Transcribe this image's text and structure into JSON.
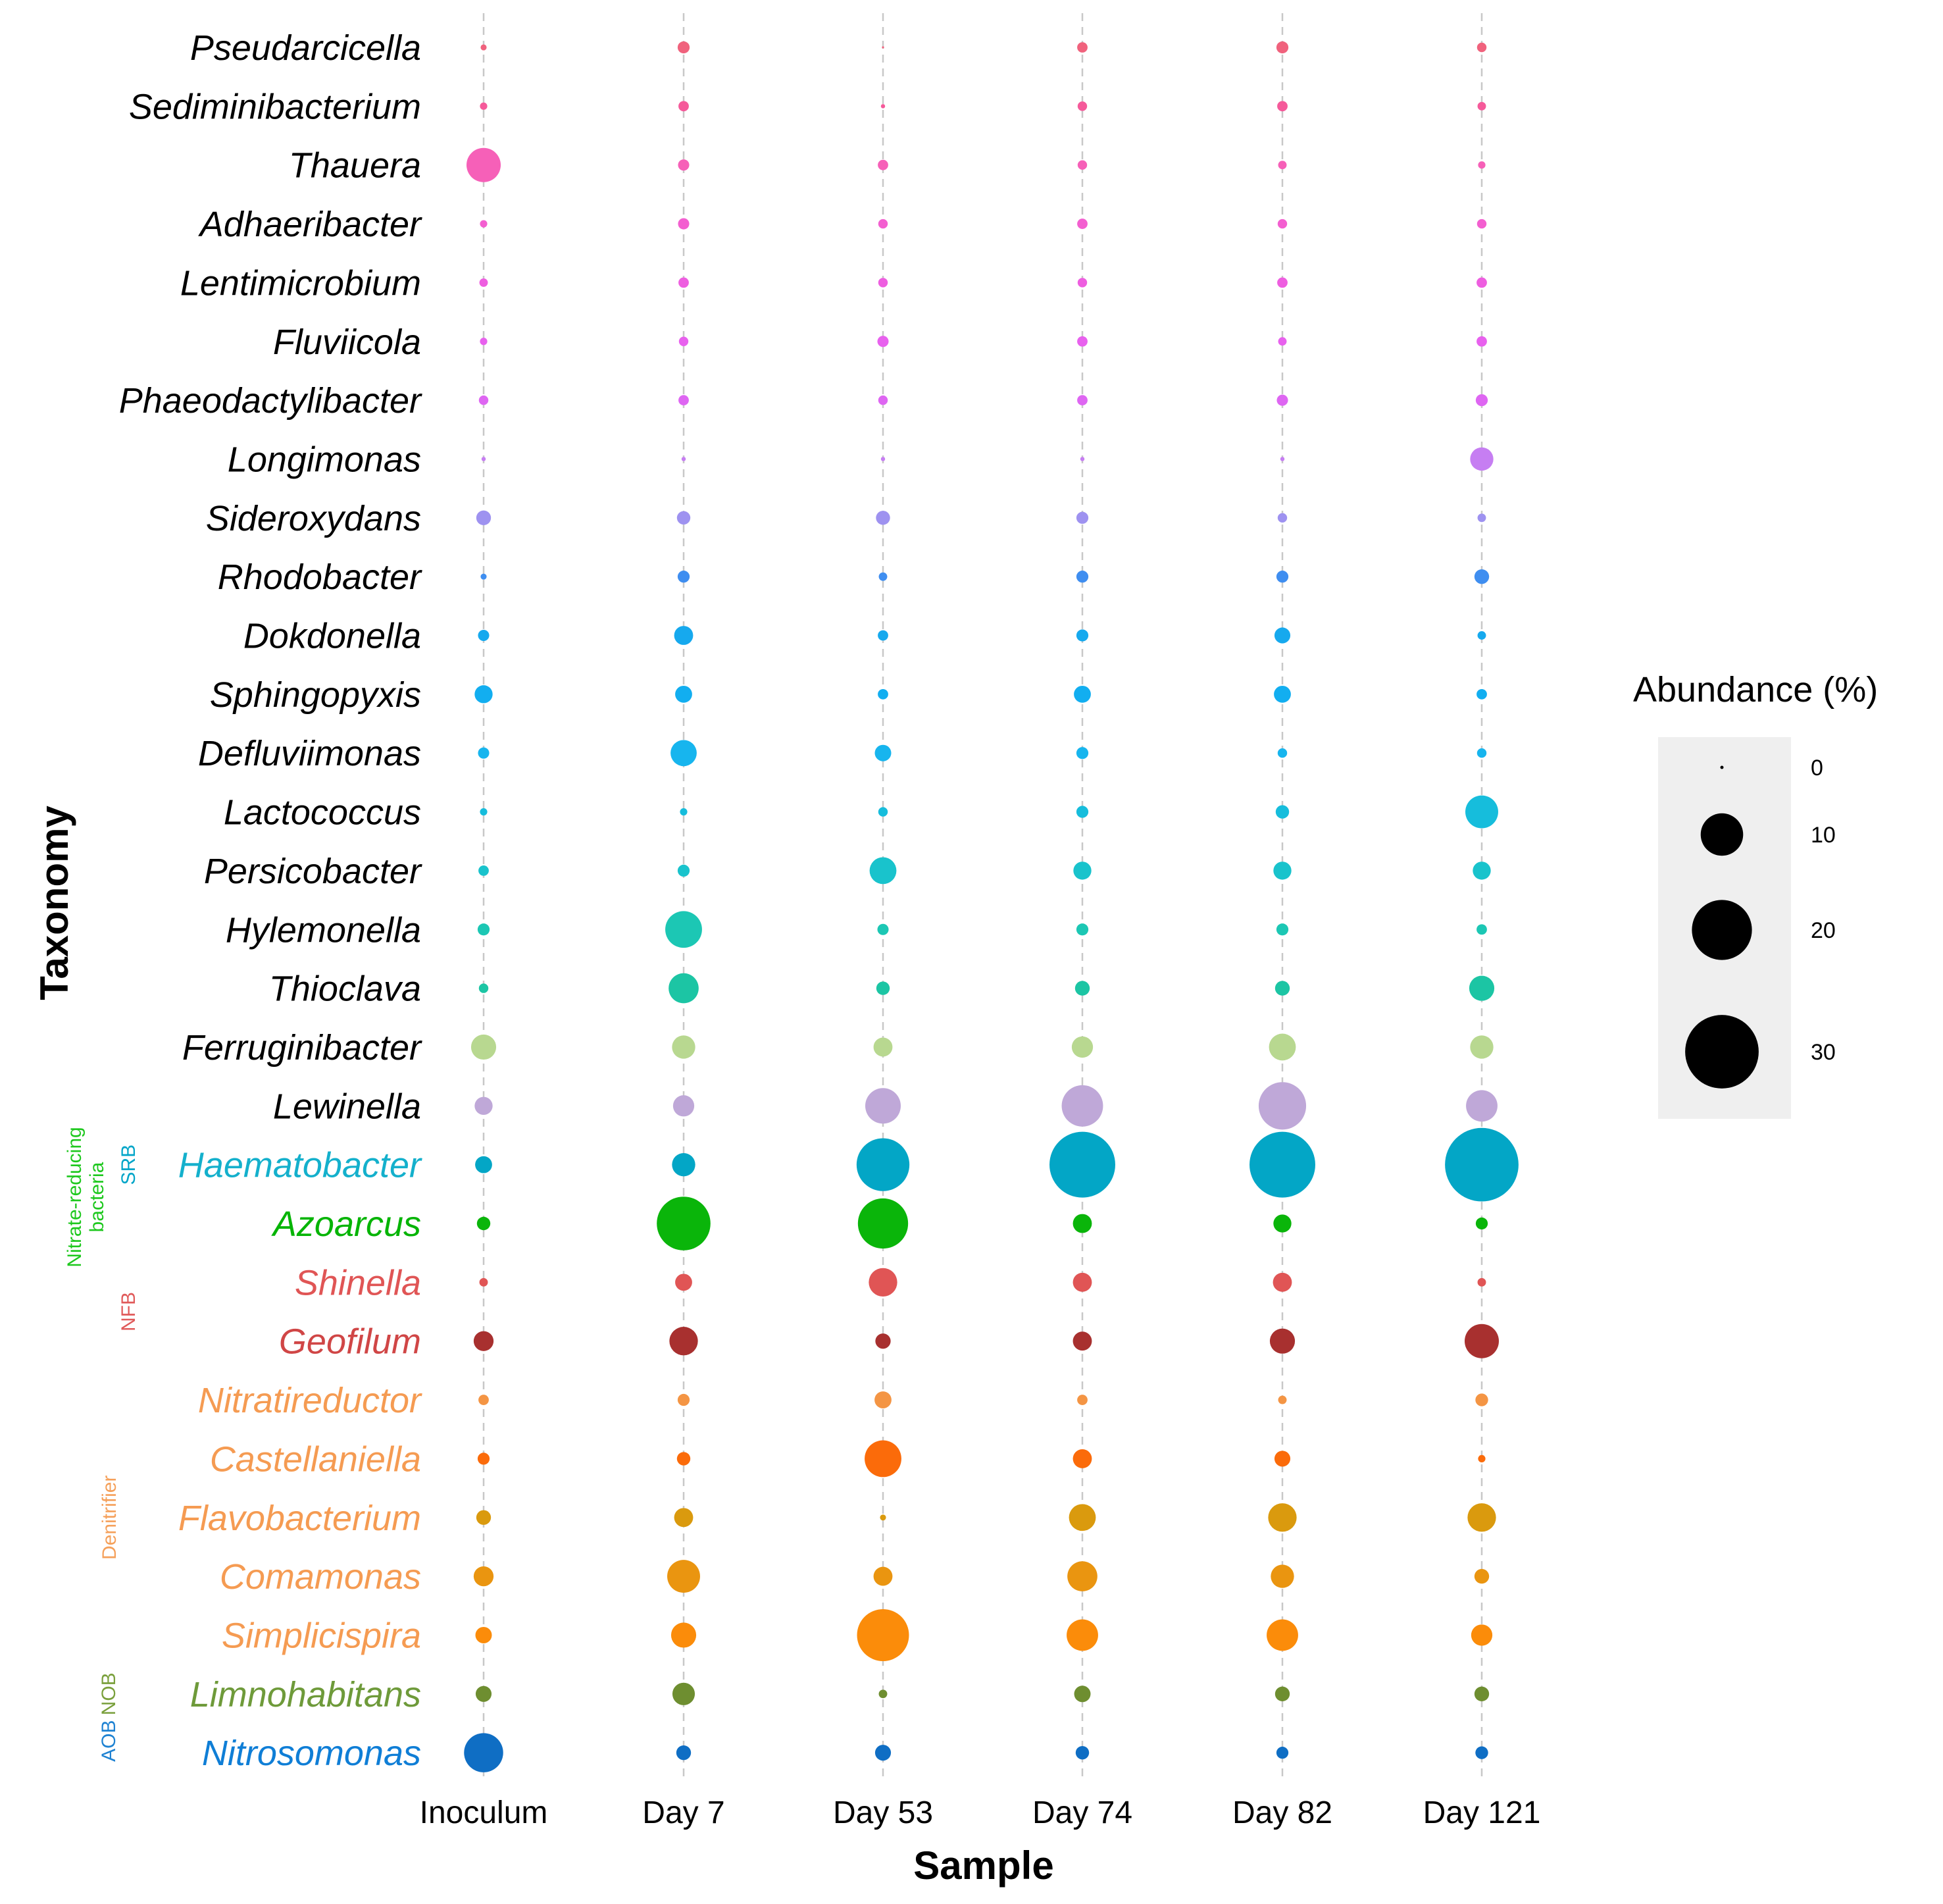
{
  "chart_data": {
    "type": "scatter",
    "subtype": "bubble",
    "xlabel": "Sample",
    "ylabel": "Taxonomy",
    "samples": [
      "Inoculum",
      "Day 7",
      "Day 53",
      "Day 74",
      "Day 82",
      "Day 121"
    ],
    "size_legend": {
      "title": "Abundance (%)",
      "values": [
        0,
        10,
        20,
        30
      ]
    },
    "groups": [
      {
        "label": "SRB",
        "color": "#00a5c8",
        "members": [
          "Haematobacter"
        ]
      },
      {
        "label": "Nitrate-reducing",
        "label2": "bacteria",
        "color": "#1ec81e",
        "members": [
          "Azoarcus"
        ]
      },
      {
        "label": "NFB",
        "color": "#e05a5a",
        "members": [
          "Shinella",
          "Geofilum"
        ]
      },
      {
        "label": "Denitrifier",
        "color": "#f5a05a",
        "members": [
          "Nitratireductor",
          "Castellaniella",
          "Flavobacterium",
          "Comamonas",
          "Simplicispira"
        ]
      },
      {
        "label": "NOB",
        "color": "#7aa03c",
        "members": [
          "Limnohabitans"
        ]
      },
      {
        "label": "AOB",
        "color": "#1e82d2",
        "members": [
          "Nitrosomonas"
        ]
      }
    ],
    "taxa": [
      {
        "name": "Pseudarcicella",
        "color": "#f0627d",
        "label_color": "#000000",
        "values": [
          0.2,
          0.8,
          0.0,
          0.6,
          0.8,
          0.5
        ]
      },
      {
        "name": "Sediminibacterium",
        "color": "#f55a9a",
        "label_color": "#000000",
        "values": [
          0.3,
          0.6,
          0.1,
          0.5,
          0.6,
          0.4
        ]
      },
      {
        "name": "Thauera",
        "color": "#f660b8",
        "label_color": "#000000",
        "values": [
          6.5,
          0.7,
          0.6,
          0.5,
          0.4,
          0.3
        ]
      },
      {
        "name": "Adhaeribacter",
        "color": "#f35fd0",
        "label_color": "#000000",
        "values": [
          0.3,
          0.7,
          0.5,
          0.6,
          0.5,
          0.5
        ]
      },
      {
        "name": "Lentimicrobium",
        "color": "#ee5ee0",
        "label_color": "#000000",
        "values": [
          0.4,
          0.6,
          0.5,
          0.5,
          0.6,
          0.6
        ]
      },
      {
        "name": "Fluviicola",
        "color": "#e861ee",
        "label_color": "#000000",
        "values": [
          0.3,
          0.5,
          0.7,
          0.6,
          0.4,
          0.6
        ]
      },
      {
        "name": "Phaeodactylibacter",
        "color": "#de66f2",
        "label_color": "#000000",
        "values": [
          0.5,
          0.6,
          0.5,
          0.6,
          0.7,
          0.8
        ]
      },
      {
        "name": "Longimonas",
        "color": "#c67ef2",
        "label_color": "#000000",
        "values": [
          0.1,
          0.1,
          0.1,
          0.1,
          0.1,
          3.0
        ]
      },
      {
        "name": "Sideroxydans",
        "color": "#9e92f0",
        "label_color": "#000000",
        "values": [
          1.2,
          1.0,
          1.1,
          0.8,
          0.5,
          0.4
        ]
      },
      {
        "name": "Rhodobacter",
        "color": "#3f8ef0",
        "label_color": "#000000",
        "values": [
          0.2,
          0.8,
          0.4,
          0.8,
          0.8,
          1.2
        ]
      },
      {
        "name": "Dokdonella",
        "color": "#16a9ee",
        "label_color": "#000000",
        "values": [
          0.7,
          2.0,
          0.6,
          0.8,
          1.4,
          0.4
        ]
      },
      {
        "name": "Sphingopyxis",
        "color": "#12aef0",
        "label_color": "#000000",
        "values": [
          1.8,
          1.6,
          0.6,
          1.6,
          1.6,
          0.6
        ]
      },
      {
        "name": "Defluviimonas",
        "color": "#17b5ee",
        "label_color": "#000000",
        "values": [
          0.7,
          3.8,
          1.5,
          0.8,
          0.5,
          0.5
        ]
      },
      {
        "name": "Lactococcus",
        "color": "#16bddc",
        "label_color": "#000000",
        "values": [
          0.3,
          0.3,
          0.5,
          0.8,
          1.0,
          6.0
        ]
      },
      {
        "name": "Persicobacter",
        "color": "#19c3cc",
        "label_color": "#000000",
        "values": [
          0.6,
          0.8,
          4.0,
          1.8,
          1.8,
          1.8
        ]
      },
      {
        "name": "Hylemonella",
        "color": "#1cc7b4",
        "label_color": "#000000",
        "values": [
          0.8,
          7.5,
          0.7,
          0.8,
          0.8,
          0.6
        ]
      },
      {
        "name": "Thioclava",
        "color": "#1cc5a4",
        "label_color": "#000000",
        "values": [
          0.5,
          5.0,
          1.0,
          1.2,
          1.2,
          3.5
        ]
      },
      {
        "name": "Ferruginibacter",
        "color": "#b8d890",
        "label_color": "#000000",
        "values": [
          3.5,
          3.0,
          2.0,
          2.5,
          4.0,
          3.0
        ]
      },
      {
        "name": "Lewinella",
        "color": "#bfa8d8",
        "label_color": "#000000",
        "values": [
          1.8,
          2.5,
          7.0,
          9.5,
          12.5,
          5.5
        ]
      },
      {
        "name": "Haematobacter",
        "color": "#03a6c6",
        "label_color": "#14b0cc",
        "values": [
          1.6,
          3.0,
          15.5,
          24.0,
          24.0,
          30.0
        ]
      },
      {
        "name": "Azoarcus",
        "color": "#0ab50a",
        "label_color": "#06b406",
        "values": [
          1.0,
          16.0,
          14.0,
          2.0,
          1.8,
          0.8
        ]
      },
      {
        "name": "Shinella",
        "color": "#e05555",
        "label_color": "#e05555",
        "values": [
          0.4,
          1.6,
          4.5,
          2.0,
          2.0,
          0.4
        ]
      },
      {
        "name": "Geofilum",
        "color": "#a8302f",
        "label_color": "#d04646",
        "values": [
          2.2,
          4.5,
          1.3,
          2.0,
          3.5,
          6.5
        ]
      },
      {
        "name": "Nitratireductor",
        "color": "#f49544",
        "label_color": "#f59b52",
        "values": [
          0.6,
          0.8,
          1.6,
          0.6,
          0.4,
          0.9
        ]
      },
      {
        "name": "Castellaniella",
        "color": "#fb6b0a",
        "label_color": "#f59b52",
        "values": [
          0.8,
          1.0,
          7.5,
          2.0,
          1.4,
          0.3
        ]
      },
      {
        "name": "Flavobacterium",
        "color": "#da9a0e",
        "label_color": "#f59b52",
        "values": [
          1.2,
          2.0,
          0.2,
          4.0,
          4.5,
          4.5
        ]
      },
      {
        "name": "Comamonas",
        "color": "#ea9510",
        "label_color": "#f59b52",
        "values": [
          2.2,
          6.0,
          2.0,
          5.0,
          3.0,
          1.2
        ]
      },
      {
        "name": "Simplicispira",
        "color": "#fb8c0a",
        "label_color": "#f59b52",
        "values": [
          1.5,
          3.5,
          15.0,
          5.5,
          5.5,
          2.5
        ]
      },
      {
        "name": "Limnohabitans",
        "color": "#6e8e30",
        "label_color": "#6e9a3a",
        "values": [
          1.4,
          2.8,
          0.4,
          1.5,
          1.2,
          1.2
        ]
      },
      {
        "name": "Nitrosomonas",
        "color": "#0f6ec4",
        "label_color": "#0f7ed6",
        "values": [
          8.5,
          1.2,
          1.4,
          1.0,
          0.8,
          0.9
        ]
      }
    ]
  }
}
